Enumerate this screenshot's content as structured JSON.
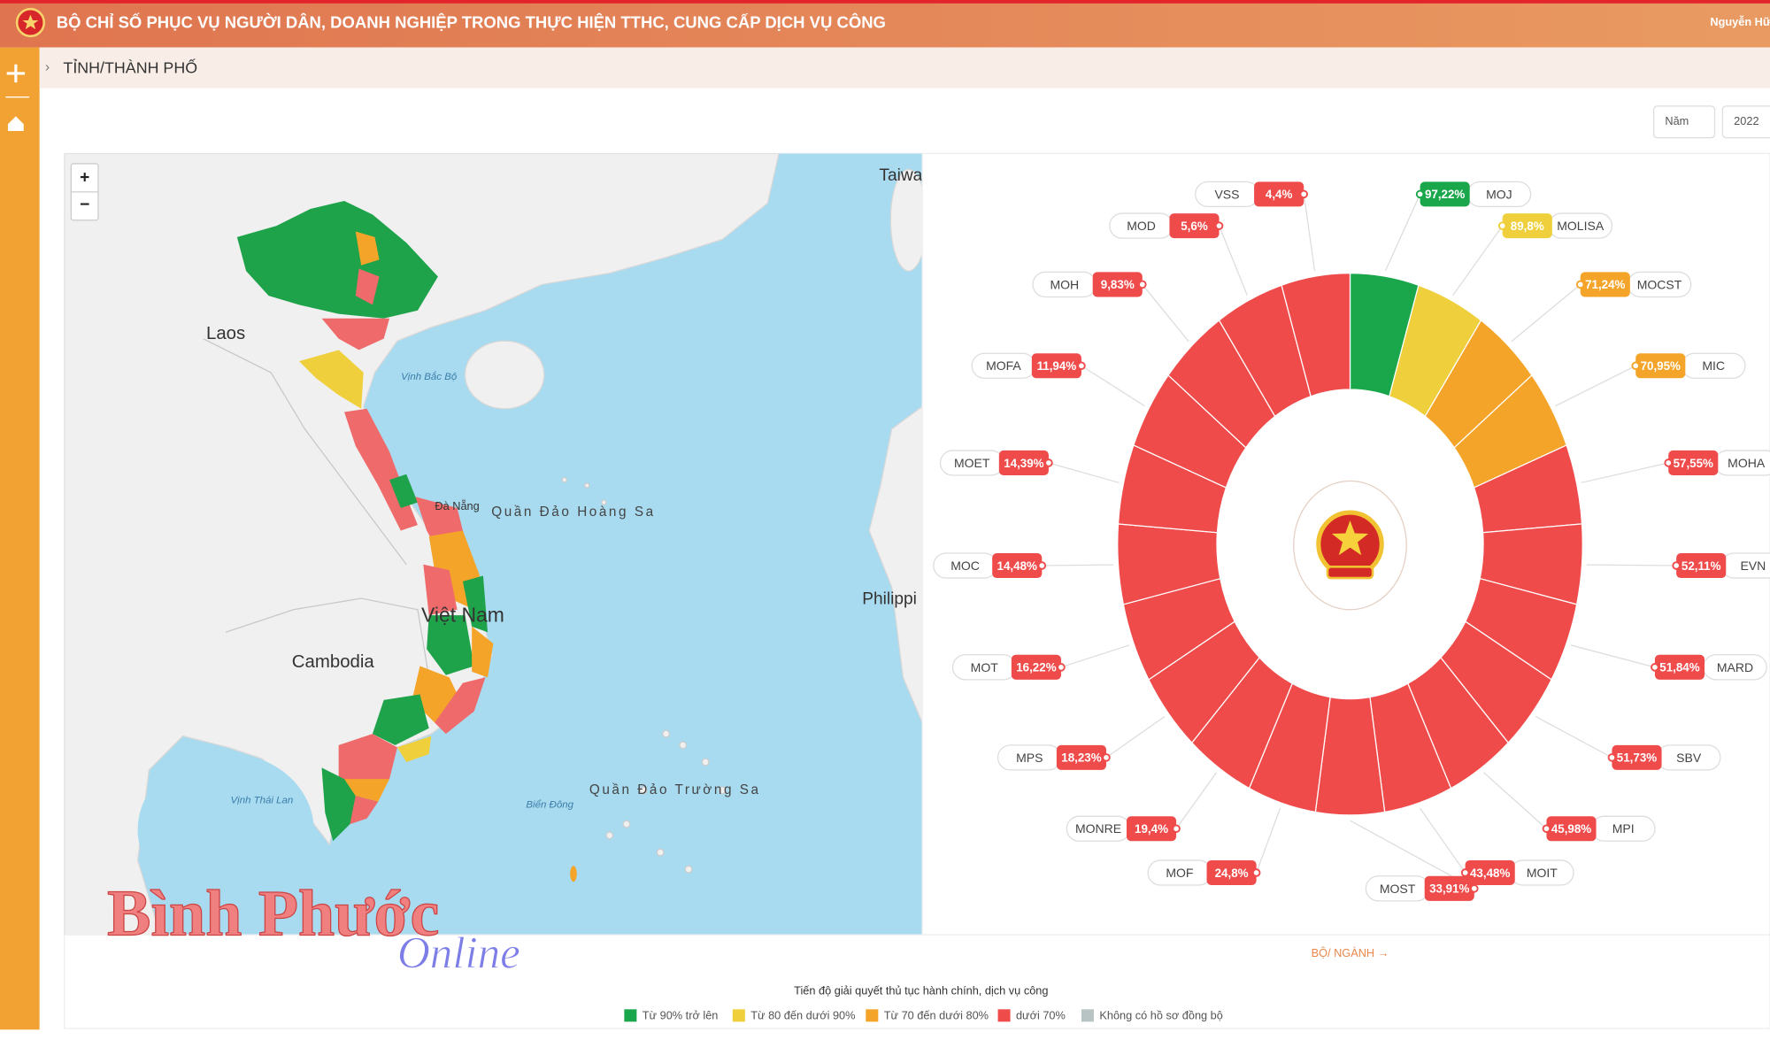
{
  "header": {
    "title": "BỘ CHỈ SỐ PHỤC VỤ NGƯỜI DÂN, DOANH NGHIỆP TRONG THỰC HIỆN TTHC, CUNG CẤP DỊCH VỤ CÔNG",
    "user": "Nguyễn Hữ"
  },
  "breadcrumb": "TỈNH/THÀNH PHỐ",
  "filters": [
    "Năm",
    "2022"
  ],
  "map": {
    "zoom_in": "+",
    "zoom_out": "−",
    "labels": [
      "Laos",
      "Cambodia",
      "Việt Nam",
      "Quần Đảo Hoàng Sa",
      "Quần Đảo Trường Sa",
      "Vịnh Bắc Bộ",
      "Vịnh Thái Lan",
      "Biển Đông",
      "Đà Nẵng",
      "Philippi",
      "Taiwa"
    ]
  },
  "ring": {
    "items": [
      {
        "name": "MOJ",
        "value": "97,22%",
        "color": "#1aa64a"
      },
      {
        "name": "MOLISA",
        "value": "89,8%",
        "color": "#efcf3c"
      },
      {
        "name": "MOCST",
        "value": "71,24%",
        "color": "#f5a42a"
      },
      {
        "name": "MIC",
        "value": "70,95%",
        "color": "#f5a42a"
      },
      {
        "name": "MOHA",
        "value": "57,55%",
        "color": "#ef4b4b"
      },
      {
        "name": "EVN",
        "value": "52,11%",
        "color": "#ef4b4b"
      },
      {
        "name": "MARD",
        "value": "51,84%",
        "color": "#ef4b4b"
      },
      {
        "name": "SBV",
        "value": "51,73%",
        "color": "#ef4b4b"
      },
      {
        "name": "MPI",
        "value": "45,98%",
        "color": "#ef4b4b"
      },
      {
        "name": "MOIT",
        "value": "43,48%",
        "color": "#ef4b4b"
      },
      {
        "name": "MOST",
        "value": "33,91%",
        "color": "#ef4b4b"
      },
      {
        "name": "MOF",
        "value": "24,8%",
        "color": "#ef4b4b"
      },
      {
        "name": "MONRE",
        "value": "19,4%",
        "color": "#ef4b4b"
      },
      {
        "name": "MPS",
        "value": "18,23%",
        "color": "#ef4b4b"
      },
      {
        "name": "MOT",
        "value": "16,22%",
        "color": "#ef4b4b"
      },
      {
        "name": "MOC",
        "value": "14,48%",
        "color": "#ef4b4b"
      },
      {
        "name": "MOET",
        "value": "14,39%",
        "color": "#ef4b4b"
      },
      {
        "name": "MOFA",
        "value": "11,94%",
        "color": "#ef4b4b"
      },
      {
        "name": "MOH",
        "value": "9,83%",
        "color": "#ef4b4b"
      },
      {
        "name": "MOD",
        "value": "5,6%",
        "color": "#ef4b4b"
      },
      {
        "name": "VSS",
        "value": "4,4%",
        "color": "#ef4b4b"
      }
    ],
    "link": "BỘ/ NGÀNH →"
  },
  "legend": {
    "title": "Tiến độ giải quyết thủ tục hành chính, dịch vụ công",
    "items": [
      {
        "label": "Từ 90% trở lên",
        "color": "#1aa64a"
      },
      {
        "label": "Từ 80 đến dưới 90%",
        "color": "#efcf3c"
      },
      {
        "label": "Từ 70 đến dưới 80%",
        "color": "#f5a42a"
      },
      {
        "label": "dưới 70%",
        "color": "#ef4b4b"
      },
      {
        "label": "Không có hồ sơ đồng bộ",
        "color": "#b8c4c4"
      }
    ]
  },
  "watermark": {
    "main": "Bình Phước",
    "sub": "Online"
  }
}
